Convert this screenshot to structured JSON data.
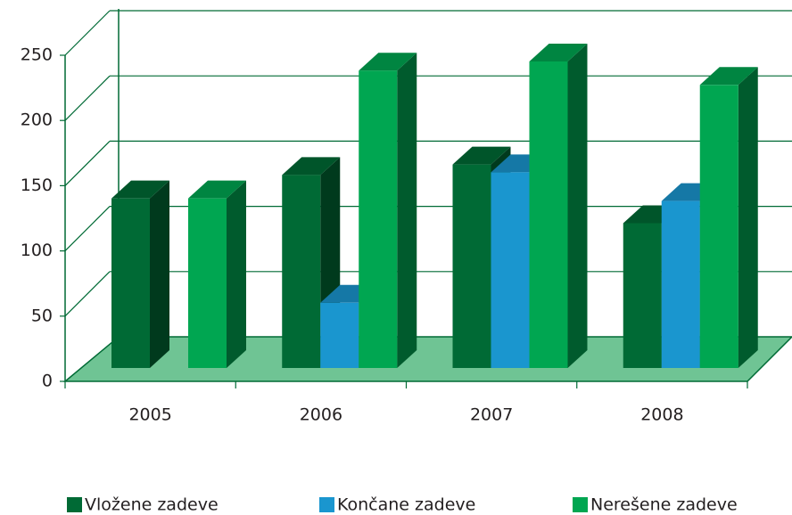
{
  "chart_data": {
    "type": "bar3d",
    "categories": [
      "2005",
      "2006",
      "2007",
      "2008"
    ],
    "series": [
      {
        "name": "Vložene zadeve",
        "color": "#006a35",
        "values": [
          130,
          148,
          156,
          111
        ]
      },
      {
        "name": "Končane zadeve",
        "color": "#1a96cf",
        "values": [
          0,
          50,
          150,
          128
        ]
      },
      {
        "name": "Nerešene zadeve",
        "color": "#00a651",
        "values": [
          130,
          228,
          235,
          217
        ]
      }
    ],
    "ylim": [
      0,
      250
    ],
    "yticks": [
      0,
      50,
      100,
      150,
      200,
      250
    ],
    "grid": true,
    "legend": "bottom"
  }
}
